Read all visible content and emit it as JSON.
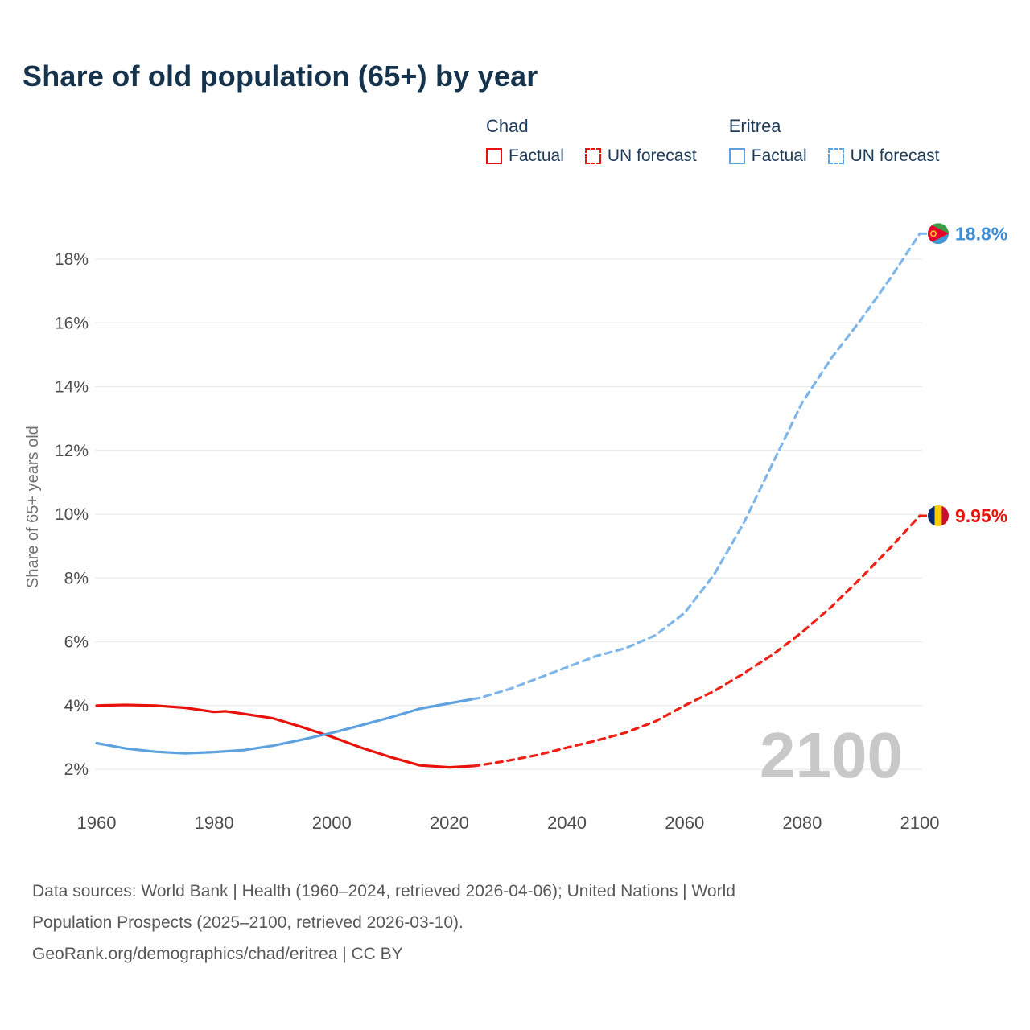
{
  "page": {
    "title": "Share of old population (65+) by year"
  },
  "legend": {
    "groups": [
      {
        "name": "Chad",
        "color": "#e8120b",
        "items": [
          {
            "label": "Factual",
            "style": "solid"
          },
          {
            "label": "UN forecast",
            "style": "dashed"
          }
        ]
      },
      {
        "name": "Eritrea",
        "color": "#5ea1df",
        "items": [
          {
            "label": "Factual",
            "style": "solid"
          },
          {
            "label": "UN forecast",
            "style": "dashed"
          }
        ]
      }
    ]
  },
  "chart_data": {
    "type": "line",
    "title": "Share of old population (65+) by year",
    "xlabel": "",
    "ylabel": "Share of 65+ years old",
    "xlim": [
      1957,
      2112
    ],
    "ylim": [
      1.5,
      19.6
    ],
    "xticks": [
      1960,
      1980,
      2000,
      2020,
      2040,
      2060,
      2080,
      2100
    ],
    "yticks": [
      2,
      4,
      6,
      8,
      10,
      12,
      14,
      16,
      18
    ],
    "grid": "horizontal",
    "legend_position": "top-right",
    "watermark": "2100",
    "series": [
      {
        "id": "chad-factual",
        "name": "Chad — Factual",
        "color": "#e8120b",
        "dashed": false,
        "x": [
          1960,
          1965,
          1970,
          1975,
          1980,
          1982,
          1985,
          1990,
          1995,
          2000,
          2005,
          2010,
          2015,
          2020,
          2024
        ],
        "y": [
          4.0,
          4.02,
          4.0,
          3.93,
          3.8,
          3.82,
          3.74,
          3.6,
          3.32,
          3.02,
          2.68,
          2.38,
          2.12,
          2.06,
          2.1
        ]
      },
      {
        "id": "chad-forecast",
        "name": "Chad — UN forecast",
        "color": "#ed2015",
        "dashed": true,
        "x": [
          2024,
          2025,
          2030,
          2035,
          2040,
          2045,
          2050,
          2055,
          2060,
          2065,
          2070,
          2075,
          2080,
          2085,
          2090,
          2095,
          2100
        ],
        "y": [
          2.1,
          2.12,
          2.27,
          2.45,
          2.68,
          2.9,
          3.15,
          3.5,
          4.0,
          4.45,
          5.0,
          5.6,
          6.3,
          7.1,
          8.0,
          8.95,
          9.95
        ]
      },
      {
        "id": "eritrea-factual",
        "name": "Eritrea — Factual",
        "color": "#5ea1df",
        "dashed": false,
        "x": [
          1960,
          1965,
          1970,
          1975,
          1980,
          1985,
          1990,
          1995,
          2000,
          2005,
          2010,
          2015,
          2020,
          2024
        ],
        "y": [
          2.82,
          2.65,
          2.55,
          2.5,
          2.54,
          2.6,
          2.74,
          2.93,
          3.14,
          3.38,
          3.63,
          3.9,
          4.07,
          4.2
        ]
      },
      {
        "id": "eritrea-forecast",
        "name": "Eritrea — UN forecast",
        "color": "#7fb6ea",
        "dashed": true,
        "x": [
          2024,
          2025,
          2030,
          2035,
          2040,
          2045,
          2050,
          2055,
          2060,
          2065,
          2070,
          2075,
          2080,
          2085,
          2090,
          2095,
          2100
        ],
        "y": [
          4.2,
          4.23,
          4.5,
          4.85,
          5.2,
          5.55,
          5.8,
          6.2,
          6.9,
          8.1,
          9.7,
          11.6,
          13.5,
          14.9,
          16.1,
          17.4,
          18.8
        ]
      }
    ],
    "end_labels": [
      {
        "text": "18.8%",
        "value": 18.8,
        "year": 2100,
        "country": "Eritrea",
        "flag": "eritrea",
        "text_color": "#3f8fd8",
        "line_color": "#7fb6ea"
      },
      {
        "text": "9.95%",
        "value": 9.95,
        "year": 2100,
        "country": "Chad",
        "flag": "chad",
        "text_color": "#e8120b",
        "line_color": "#ed2015"
      }
    ]
  },
  "footer": {
    "lines": [
      "Data sources: World Bank | Health (1960–2024, retrieved 2026-04-06); United Nations | World",
      "Population Prospects (2025–2100, retrieved 2026-03-10).",
      "GeoRank.org/demographics/chad/eritrea | CC BY"
    ]
  }
}
